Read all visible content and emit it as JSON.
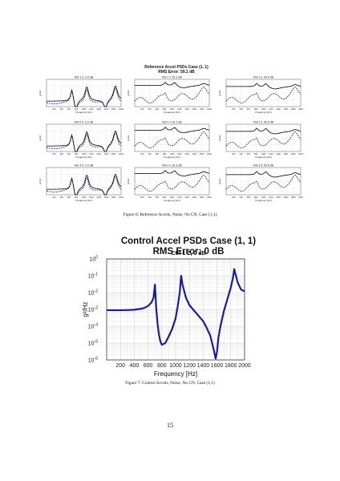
{
  "figure6": {
    "title_line1": "Reference Accel PSDs Case (1, 1)",
    "title_line2": "RMS Error: 59.2 dB",
    "caption": "Figure 6: Reference Accels, Noise, No CN, Case (1,1)",
    "panel_titles": [
      "Ref 1 X, 0.0 dB",
      "Ref 1 Y, 61.1 dB",
      "Ref 1 Z, 59.9 dB",
      "Ref 2 X, 0.0 dB",
      "Ref 2 Y, 61.1 dB",
      "Ref 2 Z, 59.9 dB",
      "Ref 3 X, 0.0 dB",
      "Ref 3 Y, 61.1 dB",
      "Ref 3 Z, 59.9 dB"
    ],
    "xlabel": "Frequency [Hz]",
    "ylabel": "g²/Hz",
    "xticks": [
      "200",
      "400",
      "600",
      "800",
      "1000",
      "1200",
      "1400",
      "1600",
      "1800",
      "2000"
    ]
  },
  "figure7": {
    "title_line1": "Control Accel PSDs Case (1, 1)",
    "title_line2": "RMS Error: 0 dB",
    "subtitle": "Ctrl 1 Z, 0 dB",
    "caption": "Figure 7: Control Accels, Noise, No CN, Case (1,1)"
  },
  "page_number": "15",
  "chart_data": [
    {
      "type": "line",
      "title": "Ctrl 1 Z, 0 dB",
      "xlabel": "Frequency [Hz]",
      "ylabel": "g²/Hz",
      "xlim": [
        0,
        2000
      ],
      "ylim_log10": [
        -6,
        0
      ],
      "yscale": "log",
      "grid": true,
      "xticks": [
        200,
        400,
        600,
        800,
        1000,
        1200,
        1400,
        1600,
        1800,
        2000
      ],
      "ytick_labels": [
        "10^0",
        "10^-1",
        "10^-2",
        "10^-3",
        "10^-4",
        "10^-5",
        "10^-6"
      ],
      "series": [
        {
          "color": "#1a1aa8",
          "x": [
            0,
            100,
            200,
            300,
            400,
            500,
            550,
            600,
            650,
            680,
            700,
            720,
            740,
            760,
            780,
            800,
            850,
            900,
            950,
            1000,
            1030,
            1060,
            1080,
            1100,
            1150,
            1200,
            1300,
            1400,
            1450,
            1500,
            1530,
            1560,
            1580,
            1600,
            1620,
            1650,
            1700,
            1750,
            1800,
            1830,
            1850,
            1870,
            1900,
            1950,
            2000
          ],
          "y": [
            0.0009,
            0.0009,
            0.0009,
            0.00092,
            0.00096,
            0.0011,
            0.00125,
            0.0016,
            0.0026,
            0.005,
            0.03,
            0.001,
            0.00012,
            3e-05,
            1.2e-05,
            8e-06,
            1e-05,
            2.5e-05,
            7e-05,
            0.0003,
            0.0015,
            0.01,
            0.1,
            0.03,
            0.005,
            0.0018,
            0.0006,
            0.0002,
            8e-05,
            3e-05,
            1e-05,
            3e-06,
            1.2e-06,
            3e-06,
            2e-05,
            0.0001,
            0.0008,
            0.004,
            0.02,
            0.07,
            0.25,
            0.12,
            0.04,
            0.015,
            0.012
          ]
        }
      ]
    }
  ]
}
